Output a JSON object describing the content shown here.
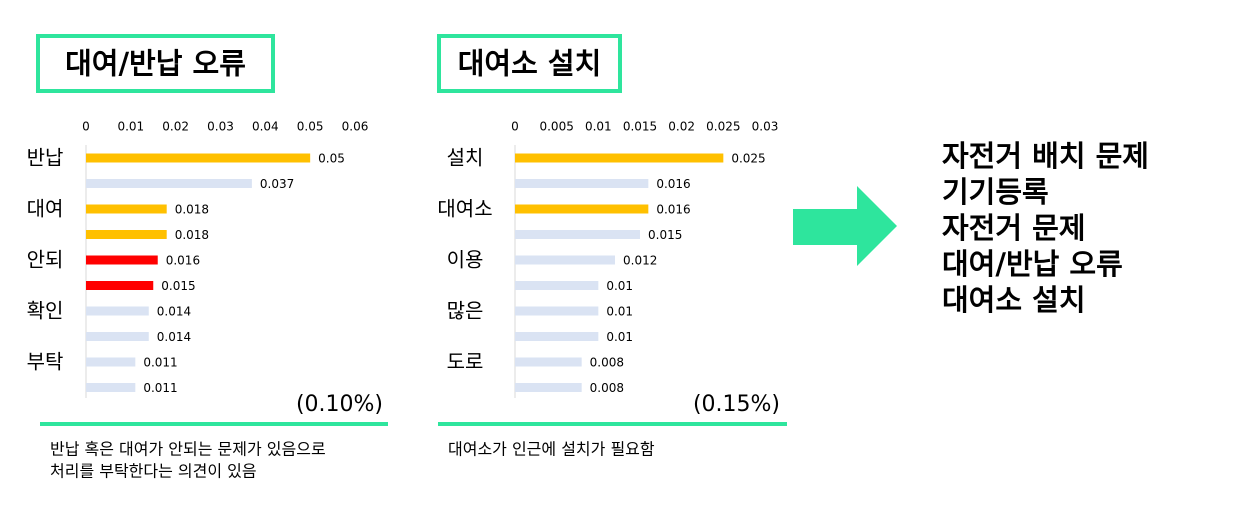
{
  "chart_data": [
    {
      "type": "bar",
      "orientation": "horizontal",
      "title": "대여/반납 오류",
      "categories": [
        "반납",
        null,
        "대여",
        null,
        "안되",
        null,
        "확인",
        null,
        "부탁",
        null
      ],
      "values": [
        0.05,
        0.037,
        0.018,
        0.018,
        0.016,
        0.015,
        0.014,
        0.014,
        0.011,
        0.011
      ],
      "colors": [
        "#ffc000",
        "#dae3f3",
        "#ffc000",
        "#ffc000",
        "#ff0000",
        "#ff0000",
        "#dae3f3",
        "#dae3f3",
        "#dae3f3",
        "#dae3f3"
      ],
      "xlim": [
        0,
        0.06
      ],
      "xticks": [
        0,
        0.01,
        0.02,
        0.03,
        0.04,
        0.05,
        0.06
      ],
      "annotation": "(0.10%)",
      "note": [
        "반납 혹은 대여가 안되는 문제가 있음으로",
        "처리를 부탁한다는 의견이 있음"
      ]
    },
    {
      "type": "bar",
      "orientation": "horizontal",
      "title": "대여소 설치",
      "categories": [
        "설치",
        null,
        "대여소",
        null,
        "이용",
        null,
        "많은",
        null,
        "도로",
        null
      ],
      "values": [
        0.025,
        0.016,
        0.016,
        0.015,
        0.012,
        0.01,
        0.01,
        0.01,
        0.008,
        0.008
      ],
      "colors": [
        "#ffc000",
        "#dae3f3",
        "#ffc000",
        "#dae3f3",
        "#dae3f3",
        "#dae3f3",
        "#dae3f3",
        "#dae3f3",
        "#dae3f3",
        "#dae3f3"
      ],
      "xlim": [
        0,
        0.03
      ],
      "xticks": [
        0,
        0.005,
        0.01,
        0.015,
        0.02,
        0.025,
        0.03
      ],
      "annotation": "(0.15%)",
      "note": [
        "대여소가 인근에 설치가 필요함"
      ]
    }
  ],
  "summary": [
    "자전거 배치 문제",
    "기기등록",
    "자전거 문제",
    "대여/반납 오류",
    "대여소 설치"
  ]
}
